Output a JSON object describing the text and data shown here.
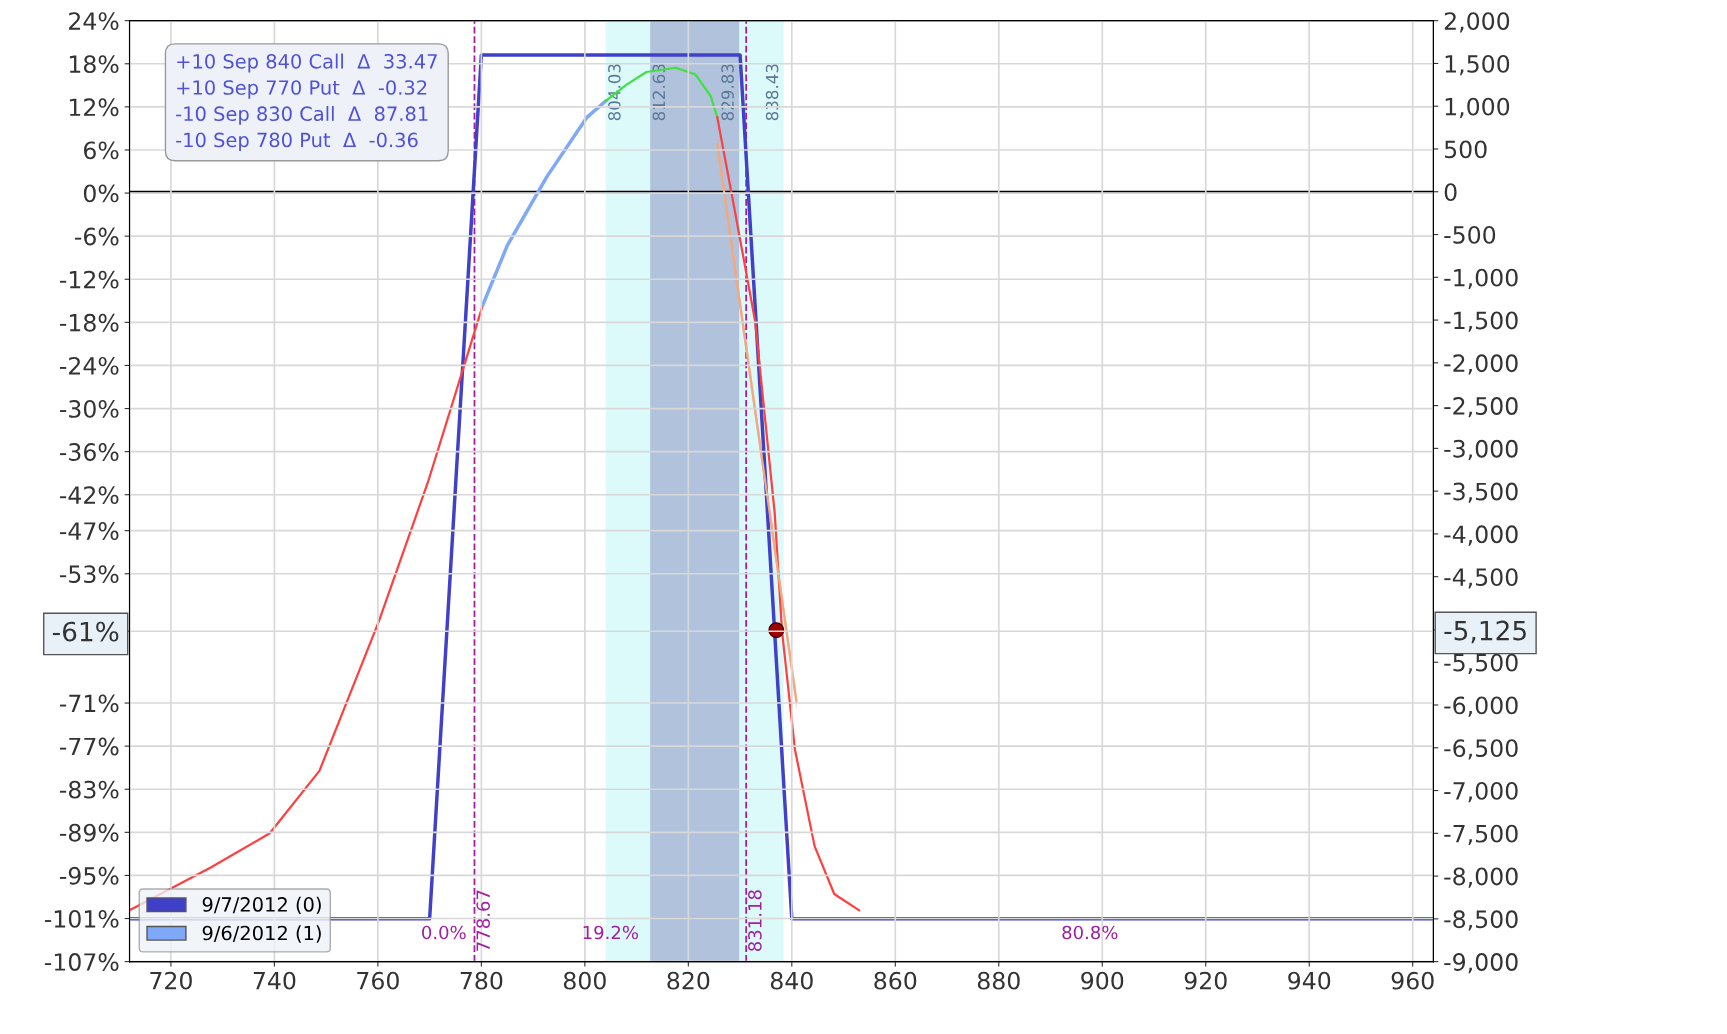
{
  "chart_data": {
    "type": "line",
    "xlim": [
      712,
      964
    ],
    "xticks": [
      720,
      740,
      760,
      780,
      800,
      820,
      840,
      860,
      880,
      900,
      920,
      940,
      960
    ],
    "ylim": [
      -107,
      24
    ],
    "yticks": [
      {
        "value": -107,
        "label": "-107%"
      },
      {
        "value": -101,
        "label": "-101%"
      },
      {
        "value": -95,
        "label": "-95%"
      },
      {
        "value": -89,
        "label": "-89%"
      },
      {
        "value": -83,
        "label": "-83%"
      },
      {
        "value": -77,
        "label": "-77%"
      },
      {
        "value": -71,
        "label": "-71%"
      },
      {
        "value": -61,
        "label": "-61%"
      },
      {
        "value": -53,
        "label": "-53%"
      },
      {
        "value": -47,
        "label": "-47%"
      },
      {
        "value": -42,
        "label": "-42%"
      },
      {
        "value": -36,
        "label": "-36%"
      },
      {
        "value": -30,
        "label": "-30%"
      },
      {
        "value": -24,
        "label": "-24%"
      },
      {
        "value": -18,
        "label": "-18%"
      },
      {
        "value": -12,
        "label": "-12%"
      },
      {
        "value": -6,
        "label": "-6%"
      },
      {
        "value": 0,
        "label": "0%"
      },
      {
        "value": 6,
        "label": "6%"
      },
      {
        "value": 12,
        "label": "12%"
      },
      {
        "value": 18,
        "label": "18%"
      },
      {
        "value": 24,
        "label": "24%"
      }
    ],
    "y2lim": [
      -9000,
      2000
    ],
    "y2ticks": [
      {
        "value": -9000,
        "label": "-9,000"
      },
      {
        "value": -8500,
        "label": "-8,500"
      },
      {
        "value": -8000,
        "label": "-8,000"
      },
      {
        "value": -7500,
        "label": "-7,500"
      },
      {
        "value": -7000,
        "label": "-7,000"
      },
      {
        "value": -6500,
        "label": "-6,500"
      },
      {
        "value": -6000,
        "label": "-6,000"
      },
      {
        "value": -5500,
        "label": "-5,500"
      },
      {
        "value": -5125,
        "label": "-5,125"
      },
      {
        "value": -4500,
        "label": "-4,500"
      },
      {
        "value": -4000,
        "label": "-4,000"
      },
      {
        "value": -3500,
        "label": "-3,500"
      },
      {
        "value": -3000,
        "label": "-3,000"
      },
      {
        "value": -2500,
        "label": "-2,500"
      },
      {
        "value": -2000,
        "label": "-2,000"
      },
      {
        "value": -1500,
        "label": "-1,500"
      },
      {
        "value": -1000,
        "label": "-1,000"
      },
      -500,
      0,
      500,
      {
        "value": 1000,
        "label": "1,000"
      },
      {
        "value": 1500,
        "label": "1,500"
      },
      {
        "value": 2000,
        "label": "2,000"
      }
    ],
    "grid": true,
    "legend": "bottom left",
    "bands": [
      {
        "axis": "x",
        "from": 804.03,
        "to": 838.43,
        "color": "#dcfafa"
      },
      {
        "axis": "x",
        "from": 812.63,
        "to": 829.83,
        "color": "#b0c2dc"
      }
    ],
    "ref_lines": [
      {
        "axis": "y2",
        "value": 0,
        "color": "#000000",
        "line_style": "solid"
      },
      {
        "axis": "x",
        "value": 778.67,
        "label": "778.67",
        "color": "#a020a0",
        "line_style": "dashed"
      },
      {
        "axis": "x",
        "value": 831.18,
        "label": "831.18",
        "color": "#a020a0",
        "line_style": "dashed"
      }
    ],
    "series": [
      {
        "name": "9/7/2012 (0)",
        "axis": "y2",
        "color": "#4040c8",
        "x": [
          712,
          770,
          780,
          830,
          840,
          964
        ],
        "values": [
          -8500,
          -8500,
          1600,
          1600,
          -8500,
          -8500
        ]
      },
      {
        "color": "#ff4040",
        "axis": "y2",
        "x": [
          712,
          727.7,
          739.1,
          748.7,
          760.2,
          769.7,
          775.5,
          780.3
        ],
        "values": [
          -8400,
          -7900,
          -7500,
          -6770,
          -5020,
          -3390,
          -2260,
          -1320
        ]
      },
      {
        "name": "9/6/2012 (1)",
        "axis": "y2",
        "color": "#80a8f8",
        "x": [
          780.3,
          785.0,
          792.7,
          800.4,
          804.0
        ],
        "values": [
          -1320,
          -630,
          180,
          870,
          1060
        ]
      },
      {
        "color": "#40e040",
        "axis": "y2",
        "x": [
          804.0,
          808.0,
          811.9,
          817.6,
          821.4,
          824.3,
          825.6
        ],
        "values": [
          1060,
          1250,
          1400,
          1450,
          1370,
          1120,
          870
        ]
      },
      {
        "color": "#ff4040",
        "axis": "y2",
        "x": [
          825.6,
          829.1,
          832.9,
          836.7,
          838.1,
          840.6,
          844.4,
          848.2,
          853.0
        ],
        "values": [
          870,
          -260,
          -1510,
          -3760,
          -5130,
          -6520,
          -7650,
          -8210,
          -8400
        ]
      },
      {
        "color": "#f4a880",
        "axis": "y2",
        "x": [
          825.6,
          840.9
        ],
        "values": [
          560,
          -5960
        ],
        "lower": [
          460,
          -6060
        ],
        "upper": [
          660,
          -5860
        ]
      },
      {
        "type": "scatter",
        "axis": "y2",
        "color": "#a00000",
        "marker": "circle",
        "x": [
          837
        ],
        "values": [
          -5125
        ]
      }
    ],
    "annotations": [
      "+10 Sep 840 Call  Δ  33.47",
      "+10 Sep 770 Put  Δ  -0.32",
      "-10 Sep 830 Call  Δ  87.81",
      "-10 Sep 780 Put  Δ  -0.36",
      "804.03",
      "812.63",
      "829.83",
      "838.43",
      "0.0%",
      "19.2%",
      "80.8%"
    ]
  }
}
